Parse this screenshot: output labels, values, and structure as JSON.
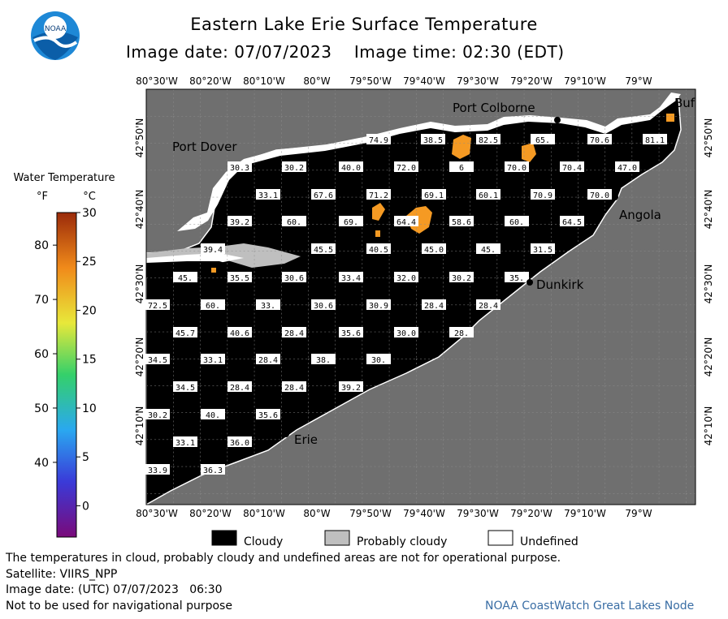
{
  "title": "Eastern Lake Erie Surface Temperature",
  "image_date_label": "Image date: 07/07/2023",
  "image_time_label": "Image time: 02:30 (EDT)",
  "logo_text": "NOAA",
  "colorbar": {
    "title": "Water Temperature",
    "unit_f": "°F",
    "unit_c": "°C",
    "f_ticks": [
      "80",
      "70",
      "60",
      "50",
      "40"
    ],
    "f_values": [
      80,
      70,
      60,
      50,
      40
    ],
    "c_ticks": [
      "30",
      "25",
      "20",
      "15",
      "10",
      "5",
      "0"
    ],
    "c_values": [
      30,
      25,
      20,
      15,
      10,
      5,
      0
    ]
  },
  "axes": {
    "lon_labels": [
      "80°30'W",
      "80°20'W",
      "80°10'W",
      "80°W",
      "79°50'W",
      "79°40'W",
      "79°30'W",
      "79°20'W",
      "79°10'W",
      "79°W"
    ],
    "lat_labels_left": [
      "42°50'N",
      "42°40'N",
      "42°30'N",
      "42°20'N",
      "42°10'N"
    ],
    "lat_labels_right": [
      "42°50'N",
      "42°40'N",
      "42°30'N",
      "42°20'N",
      "42°10'N"
    ]
  },
  "places": [
    {
      "name": "Port Colborne"
    },
    {
      "name": "Port Dover"
    },
    {
      "name": "Angola"
    },
    {
      "name": "Dunkirk"
    },
    {
      "name": "Erie"
    },
    {
      "name": "Buf"
    }
  ],
  "temperatures": [
    [
      "74.9",
      "38.5",
      "",
      "82.5",
      "65.",
      "70.6",
      "81.1"
    ],
    [
      "30.3",
      "30.2",
      "40.0",
      "72.0",
      "6",
      "70.0",
      "70.4",
      "47.0"
    ],
    [
      "33.1",
      "67.6",
      "71.2",
      "69.1",
      "60.1",
      "70.9",
      "70.0"
    ],
    [
      "39.2",
      "60.",
      "69.",
      "64.4",
      "58.6",
      "60.",
      "64.5"
    ],
    [
      "39.4",
      "45.5",
      "40.5",
      "45.0",
      "45.",
      "31.5"
    ],
    [
      "45.",
      "35.5",
      "30.6",
      "33.4",
      "32.0",
      "30.2",
      "35."
    ],
    [
      "72.5",
      "60.",
      "33.",
      "30.6",
      "30.9",
      "28.4",
      "28.4"
    ],
    [
      "45.7",
      "40.6",
      "28.4",
      "35.6",
      "30.0",
      "28."
    ],
    [
      "34.5",
      "33.1",
      "28.4",
      "38.",
      "30."
    ],
    [
      "34.5",
      "28.4",
      "28.4",
      "39.2"
    ],
    [
      "30.2",
      "40.",
      "35.6"
    ],
    [
      "33.1",
      "36.0"
    ],
    [
      "33.9",
      "36.3"
    ]
  ],
  "legend": [
    {
      "label": "Cloudy",
      "color": "#000000"
    },
    {
      "label": "Probably cloudy",
      "color": "#bfbfbf"
    },
    {
      "label": "Undefined",
      "color": "#ffffff"
    }
  ],
  "footer": {
    "note": "The temperatures in cloud, probably cloudy and undefined areas are not for operational purpose.",
    "satellite": "Satellite: VIIRS_NPP",
    "utc_date": "Image date: (UTC) 07/07/2023   06:30",
    "navigation": "Not to be used for navigational purpose",
    "credit": "NOAA CoastWatch Great Lakes Node"
  },
  "colors": {
    "land": "#6f6f6f",
    "lake_cloud": "#000000",
    "warm_pixels": "#f59a23"
  }
}
